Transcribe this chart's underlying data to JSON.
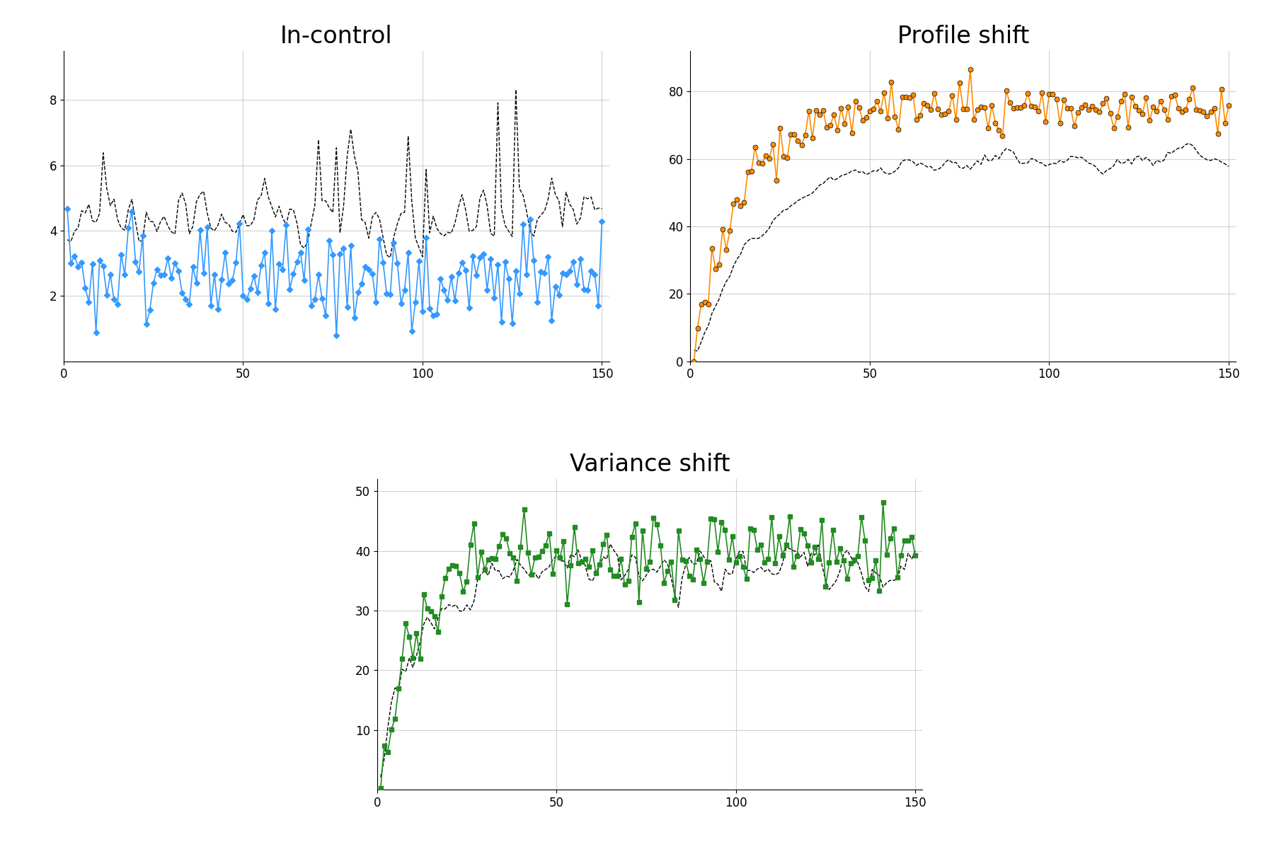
{
  "title1": "In-control",
  "title2": "Profile shift",
  "title3": "Variance shift",
  "n_points": 150,
  "color1": "#3399FF",
  "color2": "#FF8C00",
  "color3": "#228B22",
  "marker1": "D",
  "marker2": "o",
  "marker3": "s",
  "markersize1": 4,
  "markersize2": 5,
  "markersize3": 4,
  "linewidth_main": 1.2,
  "linewidth_dashed": 1.0,
  "title_fontsize": 24,
  "background_color": "#ffffff",
  "grid_color": "#cccccc"
}
